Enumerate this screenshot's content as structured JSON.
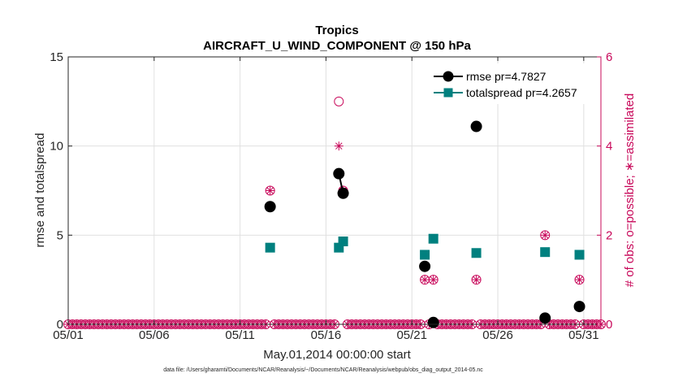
{
  "chart_data": {
    "type": "line",
    "title": "Tropics",
    "subtitle": "AIRCRAFT_U_WIND_COMPONENT @ 150 hPa",
    "xlabel": "May.01,2014 00:00:00 start",
    "ylabel": "rmse and totalspread",
    "ylabel_right": "# of obs: o=possible; ∗=assimilated",
    "footnote": "data file: /Users/gharamti/Documents/NCAR/Reanalysis/~/Documents/NCAR/Reanalysis/webpub/obs_diag_output_2014-05.nc",
    "xlim": [
      0,
      31
    ],
    "ylim": [
      0,
      15
    ],
    "ylim_right": [
      0,
      6
    ],
    "x_ticks": [
      0,
      5,
      10,
      15,
      20,
      25,
      30
    ],
    "x_tick_labels": [
      "05/01",
      "05/06",
      "05/11",
      "05/16",
      "05/21",
      "05/26",
      "05/31"
    ],
    "y_ticks": [
      0,
      5,
      10,
      15
    ],
    "y_tick_labels": [
      "0",
      "5",
      "10",
      "15"
    ],
    "y_ticks_right": [
      0,
      2,
      4,
      6
    ],
    "y_tick_labels_right": [
      "0",
      "2",
      "4",
      "6"
    ],
    "grid": true,
    "legend_position": "top-right",
    "series": [
      {
        "name": "rmse pr=4.7827",
        "color": "#000000",
        "marker": "circle",
        "points": [
          [
            11.75,
            6.6
          ],
          [
            15.75,
            8.45
          ],
          [
            16.0,
            7.35
          ],
          [
            20.75,
            3.25
          ],
          [
            21.25,
            0.1
          ],
          [
            23.75,
            11.1
          ],
          [
            27.75,
            0.35
          ],
          [
            29.75,
            1.0
          ]
        ]
      },
      {
        "name": "totalspread pr=4.2657",
        "color": "#00807f",
        "marker": "square",
        "points": [
          [
            11.75,
            4.3
          ],
          [
            15.75,
            4.3
          ],
          [
            16.0,
            4.65
          ],
          [
            20.75,
            3.9
          ],
          [
            21.25,
            4.8
          ],
          [
            23.75,
            4.0
          ],
          [
            27.75,
            4.05
          ],
          [
            29.75,
            3.9
          ]
        ]
      }
    ],
    "obs_possible": [
      [
        11.75,
        3
      ],
      [
        15.75,
        5
      ],
      [
        16.0,
        3
      ],
      [
        20.75,
        1
      ],
      [
        21.25,
        1
      ],
      [
        23.75,
        1
      ],
      [
        27.75,
        2
      ],
      [
        29.75,
        1
      ]
    ],
    "obs_assimilated": [
      [
        11.75,
        3
      ],
      [
        15.75,
        4
      ],
      [
        16.0,
        3
      ],
      [
        20.75,
        1
      ],
      [
        21.25,
        1
      ],
      [
        23.75,
        1
      ],
      [
        27.75,
        2
      ],
      [
        29.75,
        1
      ]
    ],
    "obs_time_step": 0.25,
    "colors": {
      "obs": "#c8085a",
      "rmse": "#000000",
      "totalspread": "#00807f",
      "grid": "#e0e0e0"
    }
  }
}
